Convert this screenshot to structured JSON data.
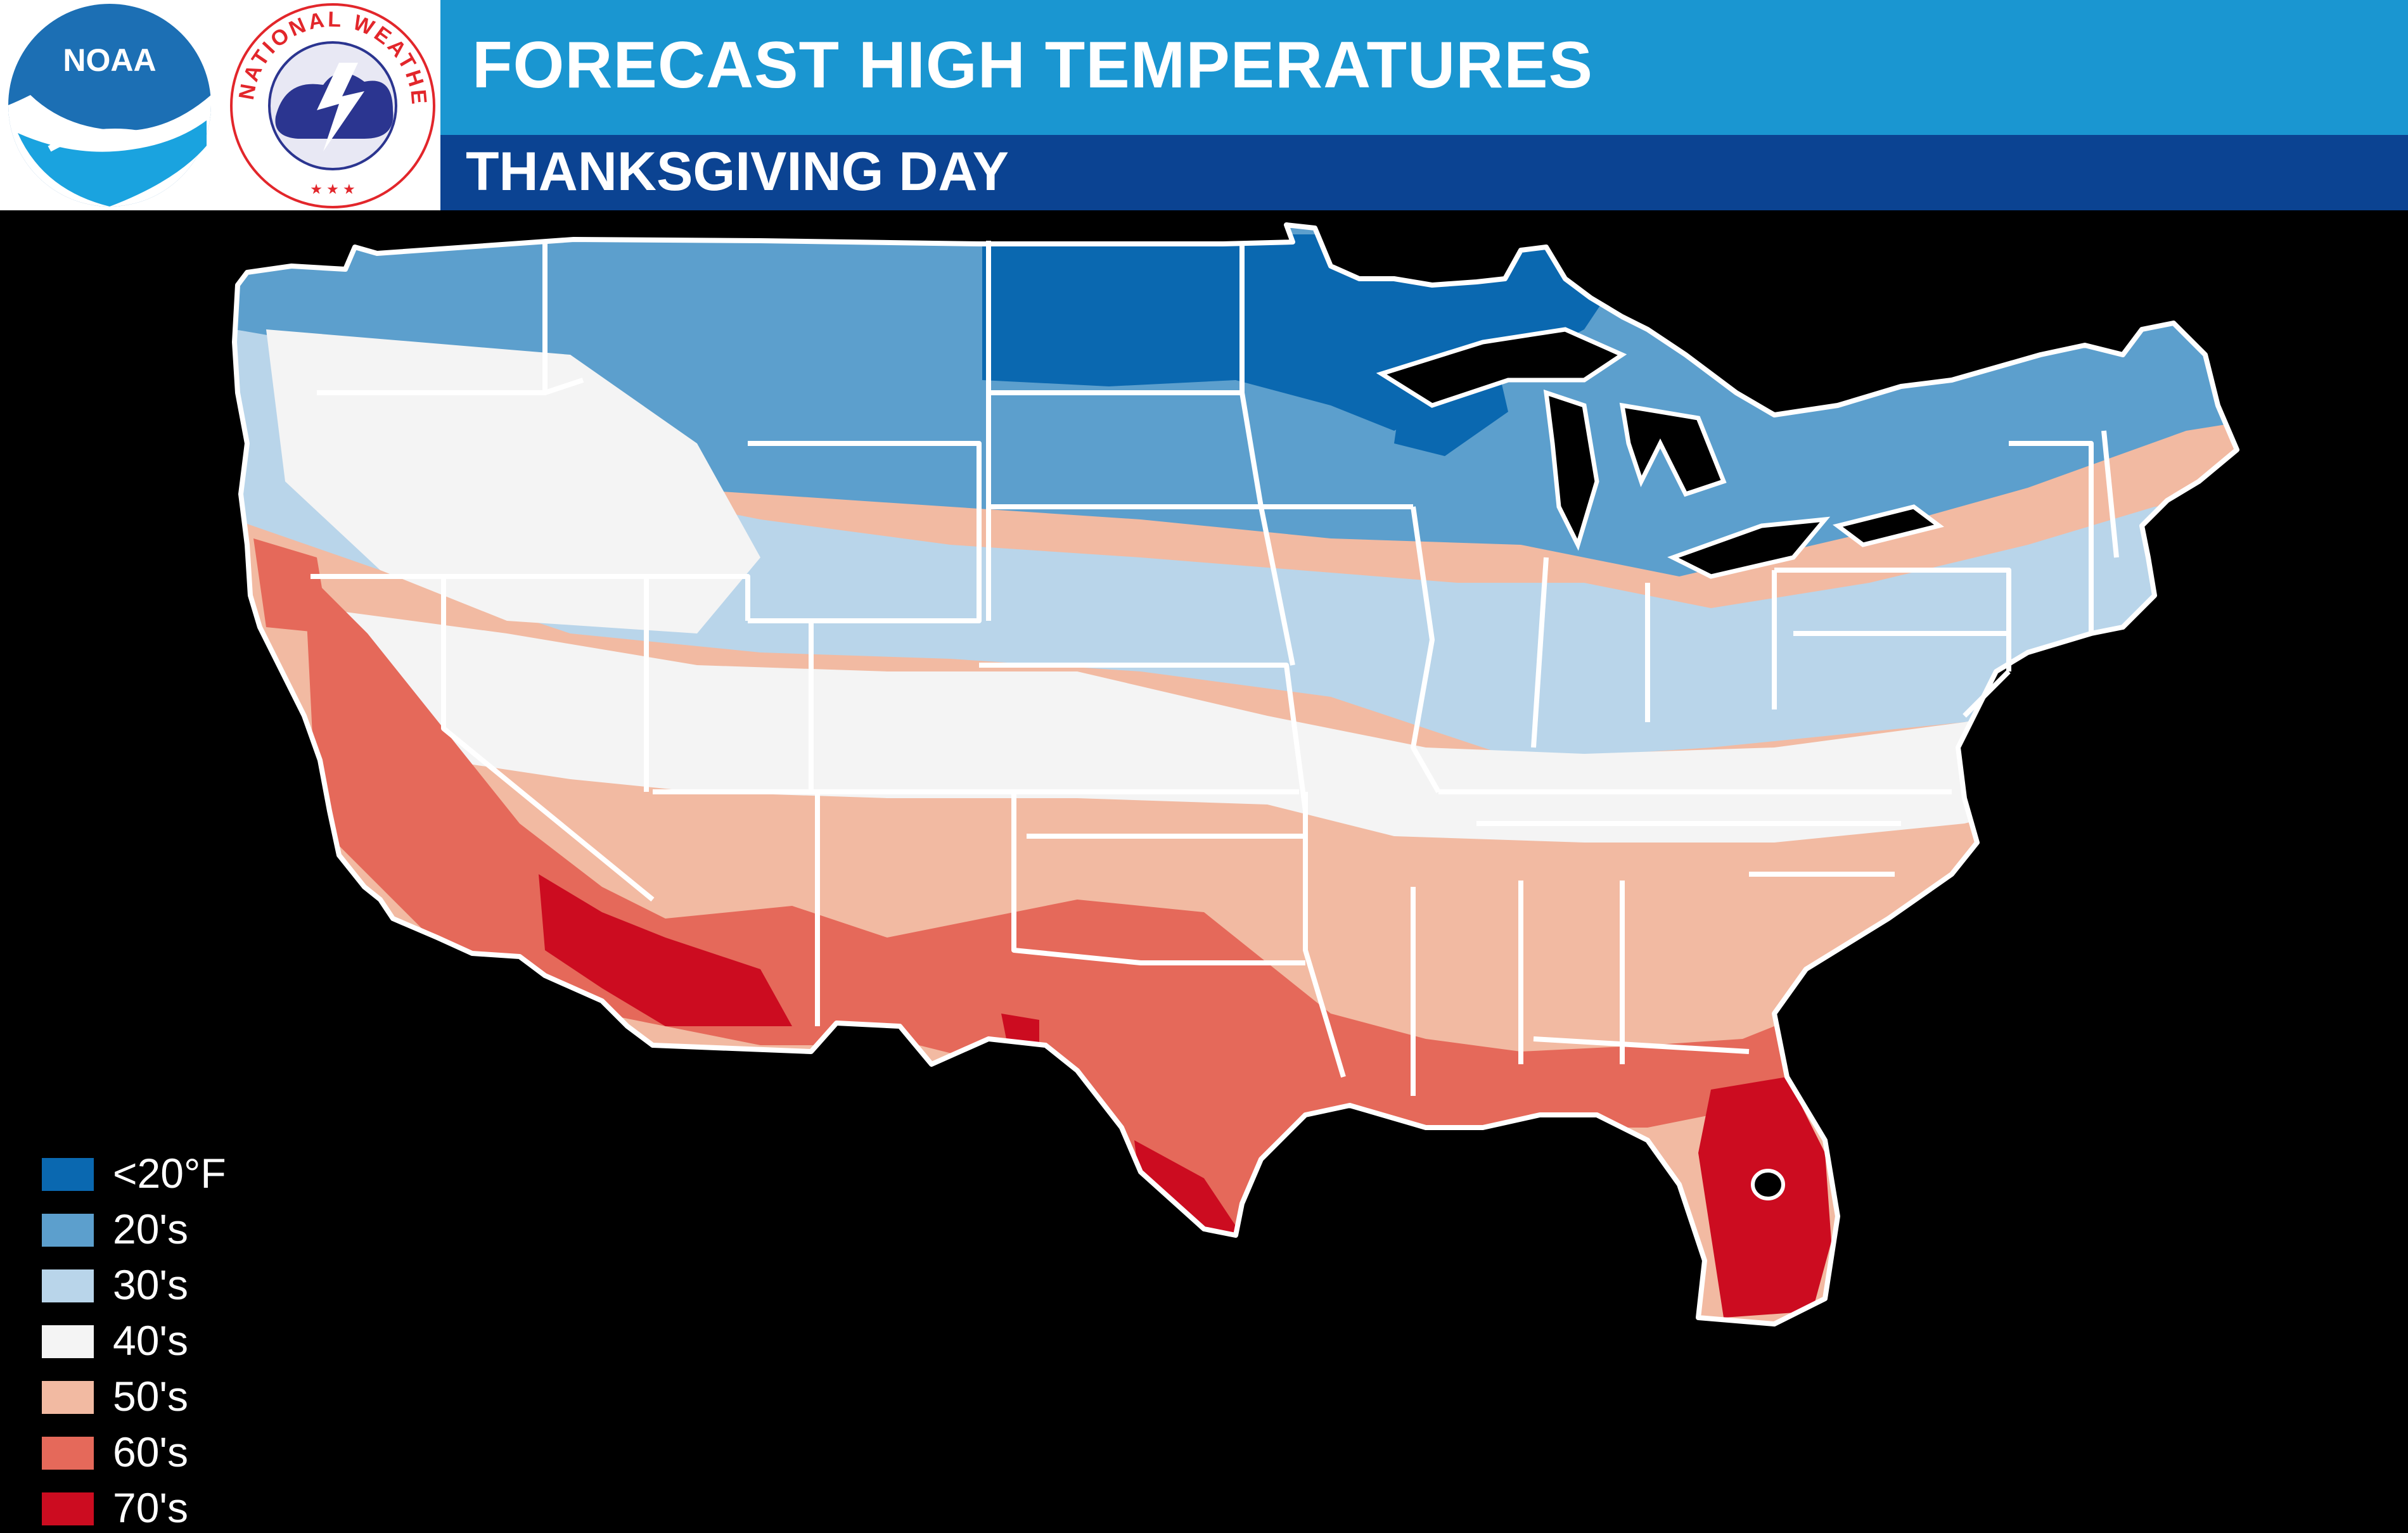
{
  "header": {
    "title": "FORECAST HIGH TEMPERATURES",
    "subtitle": "THANKSGIVING DAY",
    "colors": {
      "title_bar": "#1a96d1",
      "subtitle_bar": "#0b4392"
    }
  },
  "logos": {
    "noaa": {
      "text": "NOAA",
      "icon": "noaa-logo"
    },
    "nws": {
      "text": "NATIONAL WEATHER SERVICE",
      "icon": "nws-logo"
    }
  },
  "map": {
    "region": "Contiguous United States",
    "legend": [
      {
        "label": "<20°F",
        "color": "#0a68b0"
      },
      {
        "label": "20's",
        "color": "#5c9fcd"
      },
      {
        "label": "30's",
        "color": "#b9d5ea"
      },
      {
        "label": "40's",
        "color": "#f4f4f4"
      },
      {
        "label": "50's",
        "color": "#f2baa2"
      },
      {
        "label": "60's",
        "color": "#e5695a"
      },
      {
        "label": "70's",
        "color": "#cc0c20"
      }
    ]
  }
}
